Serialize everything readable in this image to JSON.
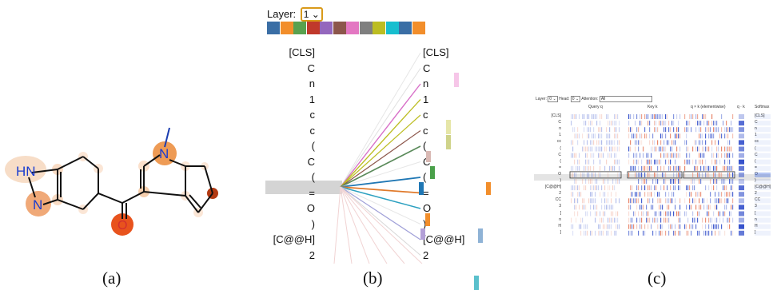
{
  "panel_a": {
    "atoms": [
      "HN",
      "N",
      "N",
      "O"
    ],
    "caption": "(a)"
  },
  "panel_b": {
    "layer_label": "Layer:",
    "layer_value": "1",
    "head_colors": [
      "#3a6ea5",
      "#f28e2b",
      "#59a14f",
      "#c0392b",
      "#9467bd",
      "#8c564b",
      "#e377c2",
      "#7f7f7f",
      "#bcbd22",
      "#17becf",
      "#3a6ea5",
      "#f28e2b"
    ],
    "tokens_left": [
      "[CLS]",
      "C",
      "n",
      "1",
      "c",
      "c",
      "(",
      "C",
      "(",
      "=",
      "O",
      ")",
      "[C@@H]",
      "2"
    ],
    "tokens_right": [
      "[CLS]",
      "C",
      "n",
      "1",
      "c",
      "c",
      "(",
      "C",
      "(",
      "=",
      "O",
      ")",
      "[C@@H]",
      "2"
    ],
    "selected_token": "=",
    "caption": "(b)"
  },
  "panel_c": {
    "layer_label": "Layer:",
    "layer_value": "0",
    "head_label": "Head:",
    "head_value": "0",
    "attention_label": "Attention:",
    "attention_value": "All",
    "col_query": "Query q",
    "col_key": "Key k",
    "col_qk": "q × k (elementwise)",
    "col_qdotk": "q · k",
    "col_softmax": "Softmax",
    "tokens_left": [
      "[CLS]",
      "C",
      "n",
      "1",
      "cc",
      "(",
      "C",
      "(",
      "=",
      "O",
      ")",
      "[C@@H]",
      "2",
      "CC",
      "3",
      "[",
      "n",
      "H",
      "]"
    ],
    "tokens_right": [
      "[CLS]",
      "C",
      "n",
      "1",
      "cc",
      "(",
      "C",
      "(",
      "=",
      "O",
      ")",
      "[C@@H]",
      "2",
      "CC",
      "3",
      "[",
      "n",
      "H",
      "]"
    ],
    "caption": "(c)"
  }
}
